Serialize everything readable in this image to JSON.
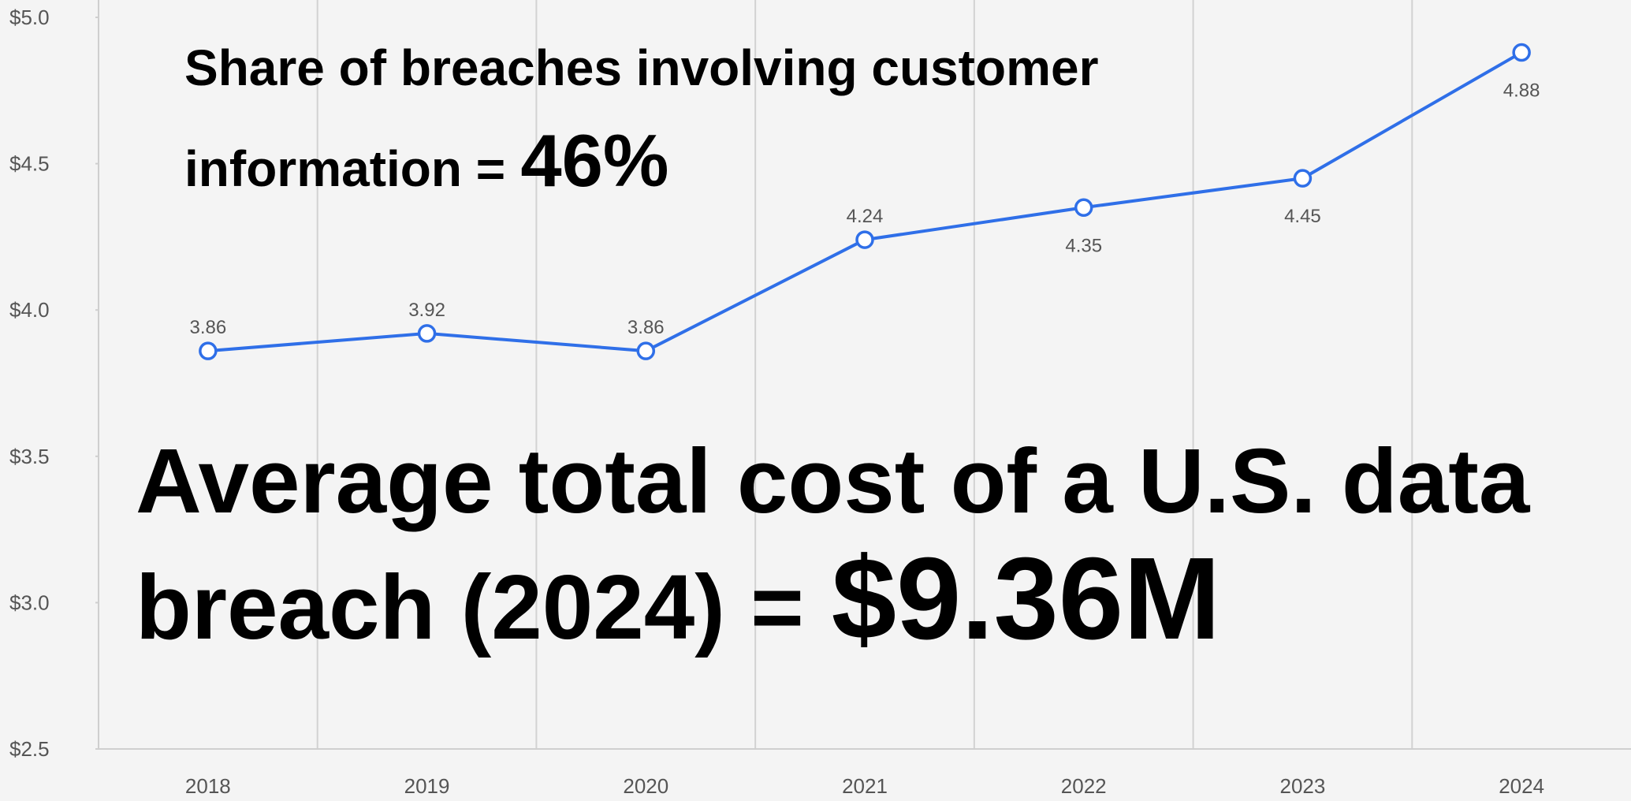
{
  "chart_data": {
    "type": "line",
    "categories": [
      "2018",
      "2019",
      "2020",
      "2021",
      "2022",
      "2023",
      "2024"
    ],
    "series": [
      {
        "color": "#2f6fe8",
        "values": [
          3.86,
          3.92,
          3.86,
          4.24,
          4.35,
          4.45,
          4.88
        ]
      }
    ],
    "ylim": [
      2.5,
      5.0
    ],
    "yticks": [
      {
        "value": 2.5,
        "label": "$2.5"
      },
      {
        "value": 3.0,
        "label": "$3.0"
      },
      {
        "value": 3.5,
        "label": "$3.5"
      },
      {
        "value": 4.0,
        "label": "$4.0"
      },
      {
        "value": 4.5,
        "label": "$4.5"
      },
      {
        "value": 5.0,
        "label": "$5.0"
      }
    ],
    "x_grid": true,
    "annotations": [
      {
        "lines": [
          "Share of breaches involving customer",
          "information ="
        ],
        "highlight": "46%"
      },
      {
        "lines": [
          "Average total cost of a U.S. data",
          "breach (2024) ="
        ],
        "highlight": "$9.36M"
      }
    ]
  }
}
